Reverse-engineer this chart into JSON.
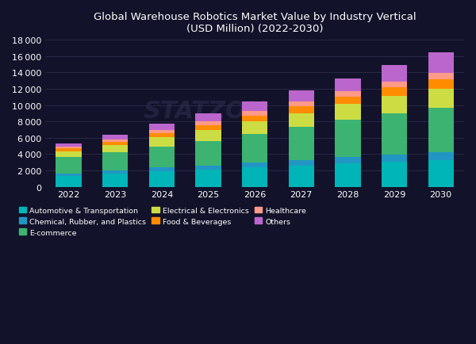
{
  "title": "Global Warehouse Robotics Market Value by Industry Vertical\n(USD Million) (2022-2030)",
  "years": [
    2022,
    2023,
    2024,
    2025,
    2026,
    2027,
    2028,
    2029,
    2030
  ],
  "categories": [
    "Automotive & Transportation",
    "Chemical, Rubber, and Plastics",
    "E-commerce",
    "Electrical & Electronics",
    "Food & Beverages",
    "Healthcare",
    "Others"
  ],
  "colors": [
    "#00B5B8",
    "#2196C4",
    "#3CB371",
    "#CCDD44",
    "#FF8C00",
    "#FF9988",
    "#BB66CC"
  ],
  "data": {
    "Automotive & Transportation": [
      1350,
      1600,
      1900,
      2100,
      2350,
      2600,
      2850,
      3100,
      3300
    ],
    "Chemical, Rubber, and Plastics": [
      300,
      380,
      450,
      520,
      600,
      680,
      760,
      840,
      920
    ],
    "E-commerce": [
      1950,
      2200,
      2600,
      3000,
      3550,
      4050,
      4550,
      5050,
      5450
    ],
    "Electrical & Electronics": [
      750,
      900,
      1100,
      1300,
      1500,
      1700,
      1950,
      2150,
      2350
    ],
    "Food & Beverages": [
      350,
      430,
      520,
      620,
      720,
      820,
      920,
      1020,
      1120
    ],
    "Healthcare": [
      250,
      300,
      380,
      460,
      530,
      600,
      670,
      740,
      810
    ],
    "Others": [
      350,
      540,
      750,
      1000,
      1150,
      1300,
      1550,
      2000,
      2550
    ]
  },
  "ylim": [
    0,
    18000
  ],
  "yticks": [
    0,
    2000,
    4000,
    6000,
    8000,
    10000,
    12000,
    14000,
    16000,
    18000
  ],
  "background_color": "#12122A",
  "plot_bg_color": "#12122A",
  "grid_color": "#333355",
  "text_color": "#ffffff",
  "watermark": "STATZON"
}
